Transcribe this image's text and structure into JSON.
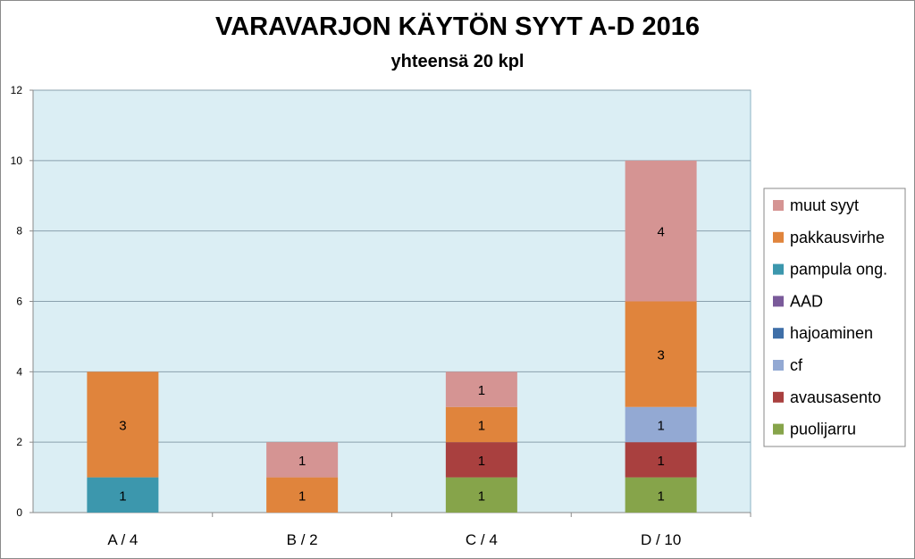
{
  "chart_data": {
    "type": "bar",
    "stacked": true,
    "title": "VARAVARJON KÄYTÖN SYYT A-D 2016",
    "subtitle": "yhteensä 20 kpl",
    "xlabel": "",
    "ylabel": "",
    "categories": [
      "A  / 4",
      "B / 2",
      "C / 4",
      "D / 10"
    ],
    "ylim": [
      0,
      12
    ],
    "yticks": [
      0,
      2,
      4,
      6,
      8,
      10,
      12
    ],
    "grid": true,
    "legend_position": "right",
    "plot_background": "#dbeef4",
    "series": [
      {
        "name": "puolijarru",
        "color": "#86a44a",
        "values": [
          0,
          0,
          1,
          1
        ]
      },
      {
        "name": "avausasento",
        "color": "#a9403f",
        "values": [
          0,
          0,
          1,
          1
        ]
      },
      {
        "name": "cf",
        "color": "#93a9d3",
        "values": [
          0,
          0,
          0,
          1
        ]
      },
      {
        "name": "hajoaminen",
        "color": "#3f6fa8",
        "values": [
          0,
          0,
          0,
          0
        ]
      },
      {
        "name": "AAD",
        "color": "#7a5a9a",
        "values": [
          0,
          0,
          0,
          0
        ]
      },
      {
        "name": "pampula ong.",
        "color": "#3c97ad",
        "values": [
          1,
          0,
          0,
          0
        ]
      },
      {
        "name": "pakkausvirhe",
        "color": "#e0843c",
        "values": [
          3,
          1,
          1,
          3
        ]
      },
      {
        "name": "muut syyt",
        "color": "#d59493",
        "values": [
          0,
          1,
          1,
          4
        ]
      }
    ]
  }
}
